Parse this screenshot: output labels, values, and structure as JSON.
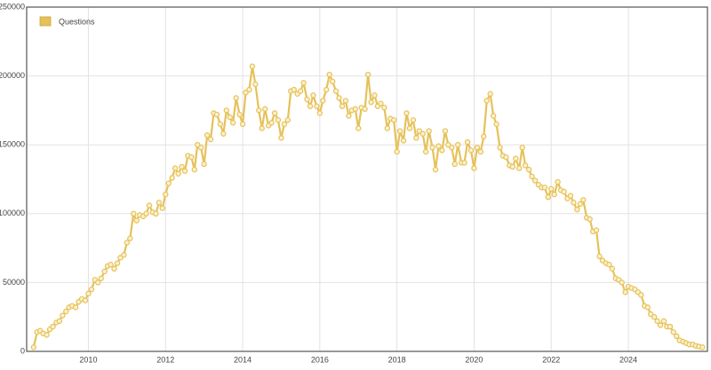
{
  "chart_data": {
    "type": "line",
    "x": [
      2008.58,
      2008.67,
      2008.75,
      2008.83,
      2008.92,
      2009.0,
      2009.08,
      2009.17,
      2009.25,
      2009.33,
      2009.42,
      2009.5,
      2009.58,
      2009.67,
      2009.75,
      2009.83,
      2009.92,
      2010.0,
      2010.08,
      2010.17,
      2010.25,
      2010.33,
      2010.42,
      2010.5,
      2010.58,
      2010.67,
      2010.75,
      2010.83,
      2010.92,
      2011.0,
      2011.08,
      2011.17,
      2011.25,
      2011.33,
      2011.42,
      2011.5,
      2011.58,
      2011.67,
      2011.75,
      2011.83,
      2011.92,
      2012.0,
      2012.08,
      2012.17,
      2012.25,
      2012.33,
      2012.42,
      2012.5,
      2012.58,
      2012.67,
      2012.75,
      2012.83,
      2012.92,
      2013.0,
      2013.08,
      2013.17,
      2013.25,
      2013.33,
      2013.42,
      2013.5,
      2013.58,
      2013.67,
      2013.75,
      2013.83,
      2013.92,
      2014.0,
      2014.08,
      2014.17,
      2014.25,
      2014.33,
      2014.42,
      2014.5,
      2014.58,
      2014.67,
      2014.75,
      2014.83,
      2014.92,
      2015.0,
      2015.08,
      2015.17,
      2015.25,
      2015.33,
      2015.42,
      2015.5,
      2015.58,
      2015.67,
      2015.75,
      2015.83,
      2015.92,
      2016.0,
      2016.08,
      2016.17,
      2016.25,
      2016.33,
      2016.42,
      2016.5,
      2016.58,
      2016.67,
      2016.75,
      2016.83,
      2016.92,
      2017.0,
      2017.08,
      2017.17,
      2017.25,
      2017.33,
      2017.42,
      2017.5,
      2017.58,
      2017.67,
      2017.75,
      2017.83,
      2017.92,
      2018.0,
      2018.08,
      2018.17,
      2018.25,
      2018.33,
      2018.42,
      2018.5,
      2018.58,
      2018.67,
      2018.75,
      2018.83,
      2018.92,
      2019.0,
      2019.08,
      2019.17,
      2019.25,
      2019.33,
      2019.42,
      2019.5,
      2019.58,
      2019.67,
      2019.75,
      2019.83,
      2019.92,
      2020.0,
      2020.08,
      2020.17,
      2020.25,
      2020.33,
      2020.42,
      2020.5,
      2020.58,
      2020.67,
      2020.75,
      2020.83,
      2020.92,
      2021.0,
      2021.08,
      2021.17,
      2021.25,
      2021.33,
      2021.42,
      2021.5,
      2021.58,
      2021.67,
      2021.75,
      2021.83,
      2021.92,
      2022.0,
      2022.08,
      2022.17,
      2022.25,
      2022.33,
      2022.42,
      2022.5,
      2022.58,
      2022.67,
      2022.75,
      2022.83,
      2022.92,
      2023.0,
      2023.08,
      2023.17,
      2023.25,
      2023.33,
      2023.42,
      2023.5,
      2023.58,
      2023.67,
      2023.75,
      2023.83,
      2023.92,
      2024.0,
      2024.08,
      2024.17,
      2024.25,
      2024.33,
      2024.42,
      2024.5,
      2024.58,
      2024.67,
      2024.75,
      2024.83,
      2024.92,
      2025.0,
      2025.08,
      2025.17,
      2025.25,
      2025.33,
      2025.42,
      2025.5,
      2025.58,
      2025.67,
      2025.75,
      2025.83,
      2025.92
    ],
    "series": [
      {
        "name": "Questions",
        "color": "#e6c15a",
        "values": [
          3000,
          14000,
          15000,
          13000,
          12000,
          16000,
          18000,
          21000,
          22000,
          26000,
          29000,
          32000,
          33000,
          32000,
          36000,
          38000,
          37000,
          42000,
          45000,
          52000,
          50000,
          53000,
          58000,
          62000,
          63000,
          60000,
          64000,
          68000,
          70000,
          79000,
          82000,
          100000,
          95000,
          99000,
          98000,
          100000,
          106000,
          101000,
          100000,
          108000,
          104000,
          114000,
          122000,
          126000,
          133000,
          129000,
          134000,
          131000,
          142000,
          141000,
          132000,
          150000,
          148000,
          136000,
          157000,
          154000,
          173000,
          172000,
          165000,
          158000,
          175000,
          170000,
          166000,
          184000,
          172000,
          165000,
          188000,
          190000,
          207000,
          194000,
          175000,
          162000,
          176000,
          164000,
          166000,
          173000,
          168000,
          155000,
          165000,
          168000,
          189000,
          190000,
          187000,
          189000,
          195000,
          183000,
          178000,
          186000,
          178000,
          173000,
          182000,
          190000,
          201000,
          196000,
          189000,
          184000,
          178000,
          182000,
          171000,
          175000,
          176000,
          162000,
          177000,
          176000,
          201000,
          181000,
          186000,
          178000,
          180000,
          177000,
          162000,
          169000,
          168000,
          145000,
          160000,
          153000,
          173000,
          162000,
          168000,
          155000,
          160000,
          158000,
          145000,
          160000,
          148000,
          132000,
          149000,
          146000,
          160000,
          150000,
          148000,
          136000,
          150000,
          137000,
          137000,
          152000,
          146000,
          133000,
          148000,
          145000,
          156000,
          182000,
          187000,
          171000,
          165000,
          148000,
          142000,
          141000,
          135000,
          134000,
          140000,
          133000,
          148000,
          135000,
          132000,
          127000,
          124000,
          121000,
          119000,
          119000,
          112000,
          118000,
          114000,
          123000,
          117000,
          116000,
          111000,
          113000,
          108000,
          103000,
          107000,
          110000,
          97000,
          96000,
          87000,
          88000,
          69000,
          66000,
          64000,
          63000,
          60000,
          53000,
          52000,
          50000,
          43000,
          47000,
          46000,
          45000,
          43000,
          41000,
          33000,
          32000,
          27000,
          25000,
          22000,
          19000,
          22000,
          18000,
          18000,
          14000,
          11000,
          8000,
          7000,
          6000,
          5000,
          5000,
          4000,
          3500,
          3000
        ]
      }
    ],
    "xlim": [
      2008.4,
      2026.05
    ],
    "xticks": [
      2010,
      2012,
      2014,
      2016,
      2018,
      2020,
      2022,
      2024
    ],
    "ylim": [
      0,
      250000
    ],
    "yticks": [
      0,
      50000,
      100000,
      150000,
      200000,
      250000
    ],
    "grid": true,
    "legend": "upper-left"
  }
}
